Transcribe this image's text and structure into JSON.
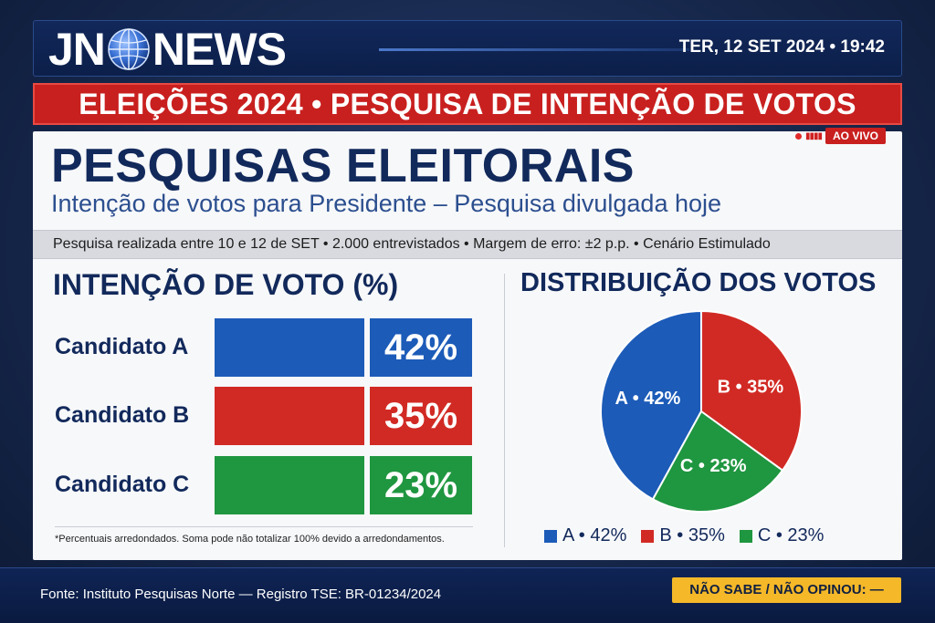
{
  "header": {
    "logo_left": "JN",
    "logo_right": "NEWS",
    "datetime": "TER, 12 SET 2024 • 19:42"
  },
  "banner": {
    "text": "ELEIÇÕES 2024 • PESQUISA DE INTENÇÃO DE VOTOS"
  },
  "live": {
    "badge": "AO VIVO"
  },
  "card": {
    "title": "PESQUISAS ELEITORAIS",
    "subtitle": "Intenção de votos para Presidente – Pesquisa divulgada hoje",
    "info": "Pesquisa realizada entre 10 e 12 de SET • 2.000 entrevistados • Margem de erro: ±2 p.p. • Cenário Estimulado",
    "footnote": "*Percentuais arredondados. Soma pode não totalizar 100% devido a arredondamentos."
  },
  "colors": {
    "A": "#1c5bb8",
    "B": "#d12a24",
    "C": "#1f9640"
  },
  "chart_data": [
    {
      "type": "bar",
      "title": "INTENÇÃO DE VOTO (%)",
      "categories": [
        "Candidato A",
        "Candidato B",
        "Candidato C"
      ],
      "values": [
        42,
        35,
        23
      ],
      "value_labels": [
        "42%",
        "35%",
        "23%"
      ]
    },
    {
      "type": "pie",
      "title": "DISTRIBUIÇÃO DOS VOTOS",
      "categories": [
        "A",
        "B",
        "C"
      ],
      "values": [
        42,
        35,
        23
      ],
      "slice_labels": [
        "A • 42%",
        "B • 35%",
        "C • 23%"
      ],
      "legend": [
        "A • 42%",
        "B • 35%",
        "C • 23%"
      ],
      "legend_position": "bottom"
    }
  ],
  "footer": {
    "source": "Fonte: Instituto Pesquisas Norte — Registro TSE: BR-01234/2024",
    "badge": "NÃO SABE / NÃO OPINOU: —"
  }
}
